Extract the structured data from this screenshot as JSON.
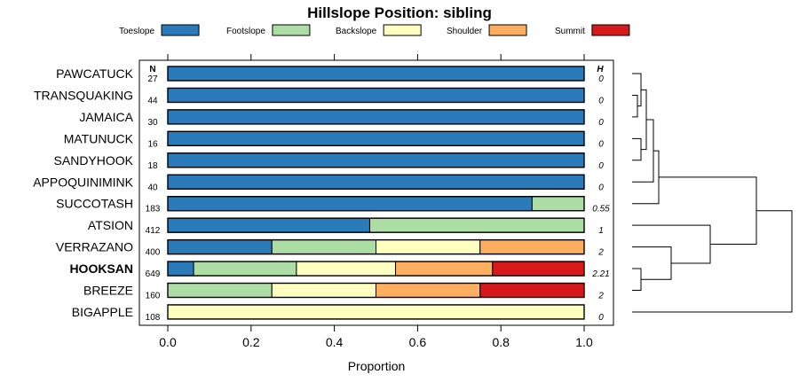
{
  "chart_data": {
    "type": "bar",
    "orientation": "horizontal",
    "stacked": true,
    "title": "Hillslope Position: sibling",
    "xlabel": "Proportion",
    "ylabel": "",
    "xlim": [
      0,
      1
    ],
    "x_ticks": [
      "0.0",
      "0.2",
      "0.4",
      "0.6",
      "0.8",
      "1.0"
    ],
    "legend_position": "top",
    "grid": false,
    "n_header": "N",
    "h_header": "H",
    "series": [
      {
        "name": "Toeslope",
        "color": "#2b7bba"
      },
      {
        "name": "Footslope",
        "color": "#abdda4"
      },
      {
        "name": "Backslope",
        "color": "#ffffbf"
      },
      {
        "name": "Shoulder",
        "color": "#fdae61"
      },
      {
        "name": "Summit",
        "color": "#d7191c"
      }
    ],
    "categories": [
      {
        "name": "PAWCATUCK",
        "n": "27",
        "h": "0",
        "values": [
          1,
          0,
          0,
          0,
          0
        ],
        "bold": false
      },
      {
        "name": "TRANSQUAKING",
        "n": "44",
        "h": "0",
        "values": [
          1,
          0,
          0,
          0,
          0
        ],
        "bold": false
      },
      {
        "name": "JAMAICA",
        "n": "30",
        "h": "0",
        "values": [
          1,
          0,
          0,
          0,
          0
        ],
        "bold": false
      },
      {
        "name": "MATUNUCK",
        "n": "16",
        "h": "0",
        "values": [
          1,
          0,
          0,
          0,
          0
        ],
        "bold": false
      },
      {
        "name": "SANDYHOOK",
        "n": "18",
        "h": "0",
        "values": [
          1,
          0,
          0,
          0,
          0
        ],
        "bold": false
      },
      {
        "name": "APPOQUINIMINK",
        "n": "40",
        "h": "0",
        "values": [
          1,
          0,
          0,
          0,
          0
        ],
        "bold": false
      },
      {
        "name": "SUCCOTASH",
        "n": "183",
        "h": "0.55",
        "values": [
          0.875,
          0.125,
          0,
          0,
          0
        ],
        "bold": false
      },
      {
        "name": "ATSION",
        "n": "412",
        "h": "1",
        "values": [
          0.485,
          0.515,
          0,
          0,
          0
        ],
        "bold": false
      },
      {
        "name": "VERRAZANO",
        "n": "400",
        "h": "2",
        "values": [
          0.25,
          0.25,
          0.25,
          0.25,
          0
        ],
        "bold": false
      },
      {
        "name": "HOOKSAN",
        "n": "649",
        "h": "2.21",
        "values": [
          0.062,
          0.247,
          0.238,
          0.233,
          0.22
        ],
        "bold": true
      },
      {
        "name": "BREEZE",
        "n": "160",
        "h": "2",
        "values": [
          0,
          0.25,
          0.25,
          0.25,
          0.25
        ],
        "bold": false
      },
      {
        "name": "BIGAPPLE",
        "n": "108",
        "h": "0",
        "values": [
          0,
          0,
          1,
          0,
          0
        ],
        "bold": false
      }
    ]
  }
}
